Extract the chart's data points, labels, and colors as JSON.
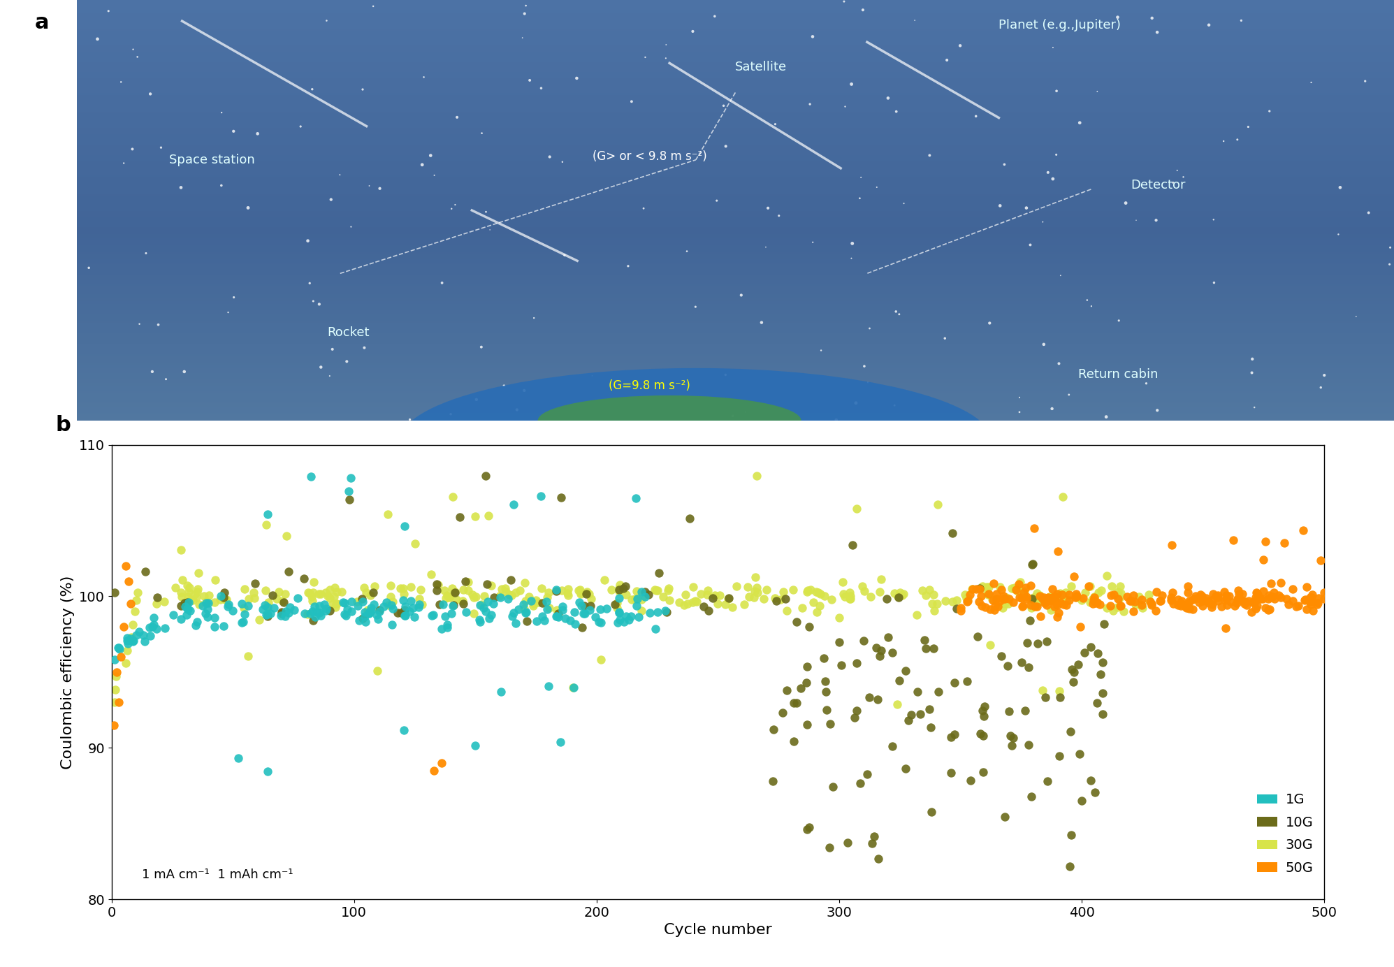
{
  "xlabel": "Cycle number",
  "ylabel": "Coulombic efficiency (%)",
  "xlim": [
    0,
    500
  ],
  "ylim": [
    80,
    110
  ],
  "yticks": [
    80,
    90,
    100,
    110
  ],
  "xticks": [
    0,
    100,
    200,
    300,
    400,
    500
  ],
  "annotation": "1 mA cm⁻¹  1 mAh cm⁻¹",
  "colors": {
    "1G": "#22BFBF",
    "10G": "#6B6B1A",
    "30G": "#D8E44A",
    "50G": "#FF8C00"
  },
  "legend_labels": [
    "1G",
    "10G",
    "30G",
    "50G"
  ],
  "marker_size": 80,
  "top_bg_color": "#3B5A8A",
  "label_color_space": "lightcyan"
}
